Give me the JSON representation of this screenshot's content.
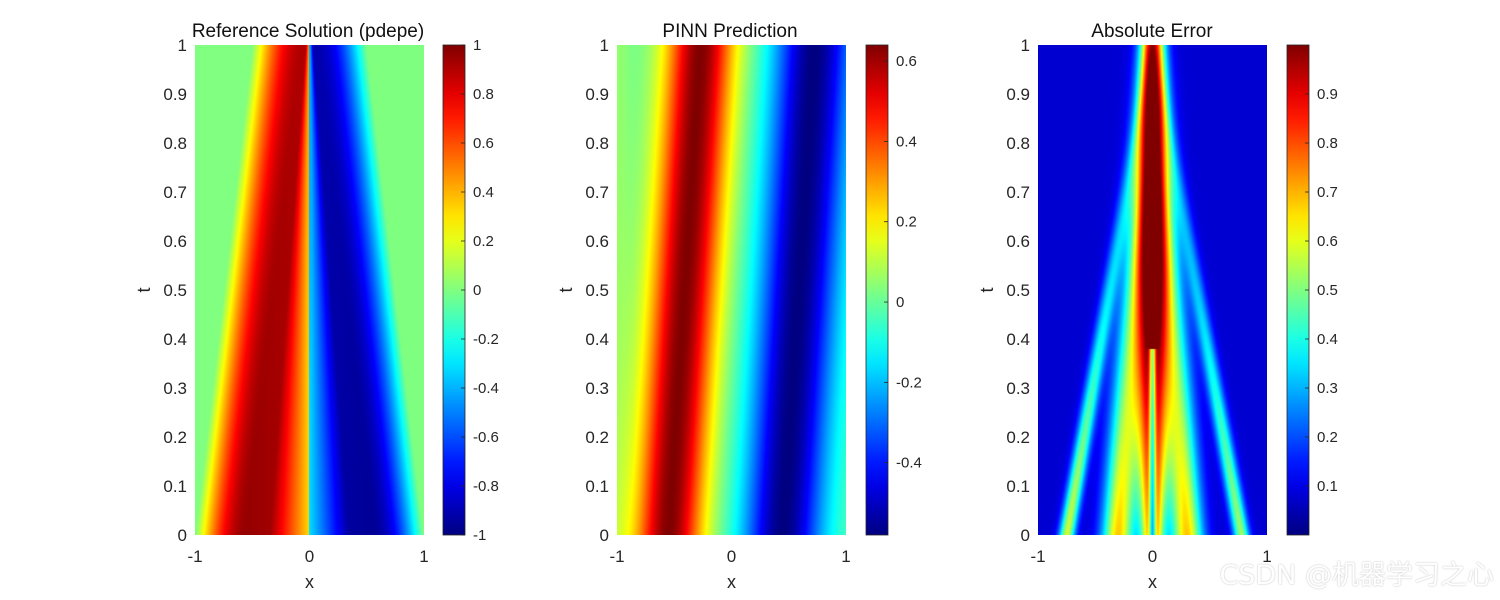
{
  "chart_data": [
    {
      "type": "heatmap",
      "title": "Reference Solution (pdepe)",
      "xlabel": "x",
      "ylabel": "t",
      "xlim": [
        -1,
        1
      ],
      "ylim": [
        0,
        1
      ],
      "xticks": [
        "-1",
        "0",
        "1"
      ],
      "yticks": [
        "0",
        "0.1",
        "0.2",
        "0.3",
        "0.4",
        "0.5",
        "0.6",
        "0.7",
        "0.8",
        "0.9",
        "1"
      ],
      "colormap": "jet",
      "clim": [
        -1,
        1
      ],
      "colorbar_ticks": [
        {
          "value": 1,
          "label": "1"
        },
        {
          "value": 0.8,
          "label": "0.8"
        },
        {
          "value": 0.6,
          "label": "0.6"
        },
        {
          "value": 0.4,
          "label": "0.4"
        },
        {
          "value": 0.2,
          "label": "0.2"
        },
        {
          "value": 0,
          "label": "0"
        },
        {
          "value": -0.2,
          "label": "-0.2"
        },
        {
          "value": -0.4,
          "label": "-0.4"
        },
        {
          "value": -0.6,
          "label": "-0.6"
        },
        {
          "value": -0.8,
          "label": "-0.8"
        },
        {
          "value": -1,
          "label": "-1"
        }
      ],
      "field": "u(x,t) of the Burgers-type equation: sine initial profile -sin(pi x) steepening into a shock at x = 0"
    },
    {
      "type": "heatmap",
      "title": "PINN Prediction",
      "xlabel": "x",
      "ylabel": "t",
      "xlim": [
        -1,
        1
      ],
      "ylim": [
        0,
        1
      ],
      "xticks": [
        "-1",
        "0",
        "1"
      ],
      "yticks": [
        "0",
        "0.1",
        "0.2",
        "0.3",
        "0.4",
        "0.5",
        "0.6",
        "0.7",
        "0.8",
        "0.9",
        "1"
      ],
      "colormap": "jet",
      "clim": [
        -0.58,
        0.64
      ],
      "colorbar_ticks": [
        {
          "value": 0.6,
          "label": "0.6"
        },
        {
          "value": 0.4,
          "label": "0.4"
        },
        {
          "value": 0.2,
          "label": "0.2"
        },
        {
          "value": 0,
          "label": "0"
        },
        {
          "value": -0.2,
          "label": "-0.2"
        },
        {
          "value": -0.4,
          "label": "-0.4"
        }
      ],
      "field": "PINN approximation of u(x,t): diagonal bands drifting toward positive x"
    },
    {
      "type": "heatmap",
      "title": "Absolute Error",
      "xlabel": "x",
      "ylabel": "t",
      "xlim": [
        -1,
        1
      ],
      "ylim": [
        0,
        1
      ],
      "xticks": [
        "-1",
        "0",
        "1"
      ],
      "yticks": [
        "0",
        "0.1",
        "0.2",
        "0.3",
        "0.4",
        "0.5",
        "0.6",
        "0.7",
        "0.8",
        "0.9",
        "1"
      ],
      "colormap": "jet",
      "clim": [
        0,
        1
      ],
      "colorbar_ticks": [
        {
          "value": 0.9,
          "label": "0.9"
        },
        {
          "value": 0.8,
          "label": "0.8"
        },
        {
          "value": 0.7,
          "label": "0.7"
        },
        {
          "value": 0.6,
          "label": "0.6"
        },
        {
          "value": 0.5,
          "label": "0.5"
        },
        {
          "value": 0.4,
          "label": "0.4"
        },
        {
          "value": 0.3,
          "label": "0.3"
        },
        {
          "value": 0.2,
          "label": "0.2"
        },
        {
          "value": 0.1,
          "label": "0.1"
        }
      ],
      "field": "|reference - PINN|: large error in a wedge around x = 0, peaking near the shock"
    }
  ],
  "watermark": "CSDN @机器学习之心"
}
